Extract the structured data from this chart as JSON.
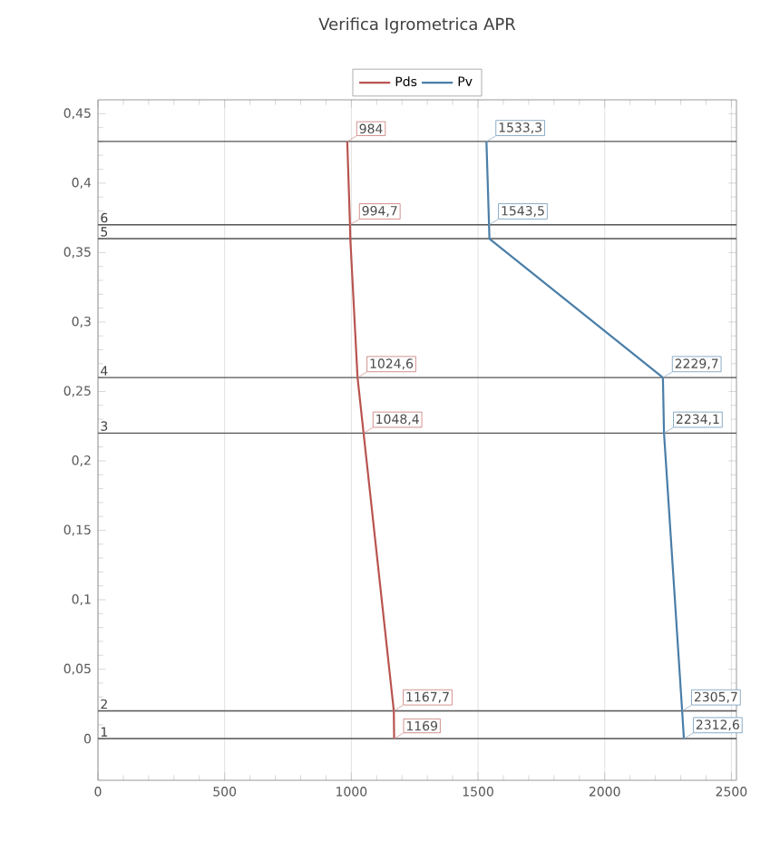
{
  "chart_data": {
    "type": "line",
    "title": "Verifica Igrometrica APR",
    "xlim": [
      0,
      2520
    ],
    "ylim": [
      -0.03,
      0.46
    ],
    "xticks": [
      0,
      500,
      1000,
      1500,
      2000,
      2500
    ],
    "yticks": [
      {
        "value": 0,
        "label": "0"
      },
      {
        "value": 0.05,
        "label": "0,05"
      },
      {
        "value": 0.1,
        "label": "0,1"
      },
      {
        "value": 0.15,
        "label": "0,15"
      },
      {
        "value": 0.2,
        "label": "0,2"
      },
      {
        "value": 0.25,
        "label": "0,25"
      },
      {
        "value": 0.3,
        "label": "0,3"
      },
      {
        "value": 0.35,
        "label": "0,35"
      },
      {
        "value": 0.4,
        "label": "0,4"
      },
      {
        "value": 0.45,
        "label": "0,45"
      }
    ],
    "grid": "x",
    "legend": "top",
    "marker": "none",
    "line_style": "solid",
    "series": [
      {
        "name": "Pds",
        "color": "#b85450",
        "x": [
          1169,
          1167.7,
          1048.4,
          1024.6,
          996,
          994.7,
          984
        ],
        "values": [
          0,
          0.02,
          0.22,
          0.26,
          0.36,
          0.37,
          0.43
        ]
      },
      {
        "name": "Pv",
        "color": "#4a7ea8",
        "x": [
          2312.6,
          2305.7,
          2234.1,
          2229.7,
          1545,
          1543.5,
          1533.3
        ],
        "values": [
          0,
          0.02,
          0.22,
          0.26,
          0.36,
          0.37,
          0.43
        ]
      }
    ],
    "ref_lines": [
      {
        "axis": "y",
        "value": 0,
        "color": "#555555"
      },
      {
        "axis": "y",
        "value": 0.02,
        "color": "#555555"
      },
      {
        "axis": "y",
        "value": 0.22,
        "color": "#555555"
      },
      {
        "axis": "y",
        "value": 0.26,
        "color": "#555555"
      },
      {
        "axis": "y",
        "value": 0.36,
        "color": "#555555"
      },
      {
        "axis": "y",
        "value": 0.37,
        "color": "#555555"
      },
      {
        "axis": "y",
        "value": 0.43,
        "color": "#555555"
      }
    ],
    "annotations": [
      {
        "text": "1",
        "x": 0,
        "y": 0
      },
      {
        "text": "2",
        "x": 0,
        "y": 0.02
      },
      {
        "text": "3",
        "x": 0,
        "y": 0.22
      },
      {
        "text": "4",
        "x": 0,
        "y": 0.26
      },
      {
        "text": "5",
        "x": 0,
        "y": 0.36
      },
      {
        "text": "6",
        "x": 0,
        "y": 0.37
      },
      {
        "text": "1169",
        "x": 1169,
        "y": 0
      },
      {
        "text": "1167,7",
        "x": 1167.7,
        "y": 0.02
      },
      {
        "text": "1048,4",
        "x": 1048.4,
        "y": 0.22
      },
      {
        "text": "1024,6",
        "x": 1024.6,
        "y": 0.26
      },
      {
        "text": "994,7",
        "x": 994.7,
        "y": 0.37
      },
      {
        "text": "984",
        "x": 984,
        "y": 0.43
      },
      {
        "text": "2312,6",
        "x": 2312.6,
        "y": 0
      },
      {
        "text": "2305,7",
        "x": 2305.7,
        "y": 0.02
      },
      {
        "text": "2234,1",
        "x": 2234.1,
        "y": 0.22
      },
      {
        "text": "2229,7",
        "x": 2229.7,
        "y": 0.26
      },
      {
        "text": "1543,5",
        "x": 1543.5,
        "y": 0.37
      },
      {
        "text": "1533,3",
        "x": 1533.3,
        "y": 0.43
      }
    ]
  }
}
